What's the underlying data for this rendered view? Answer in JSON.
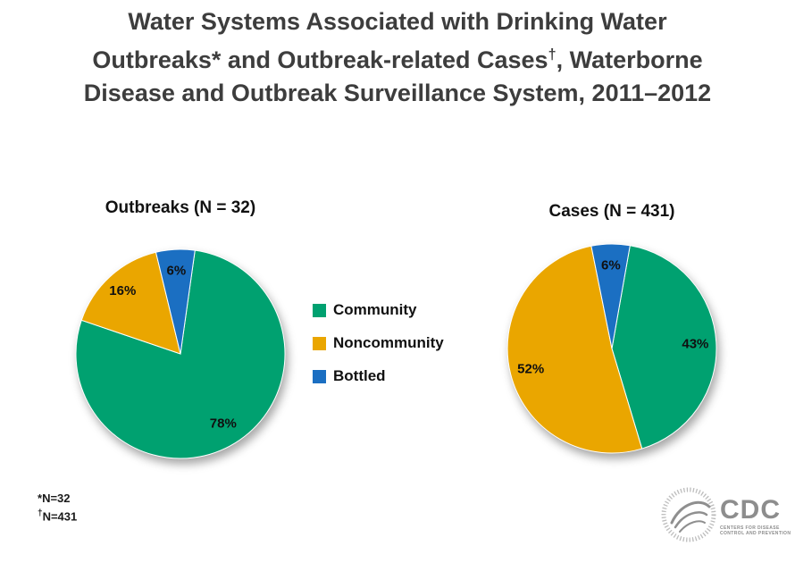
{
  "title": {
    "line1": "Water Systems Associated with Drinking Water",
    "line2_before_sup": "Outbreaks* and Outbreak-related Cases",
    "line2_sup": "†",
    "line2_after_sup": ", Waterborne",
    "line3": "Disease and Outbreak Surveillance System, 2011–2012"
  },
  "chart_data": {
    "type": "pie",
    "pies": [
      {
        "name": "outbreaks",
        "title": "Outbreaks (N = 32)",
        "n": 32,
        "start_angle": 8,
        "slices": [
          {
            "label": "Community",
            "pct": 78,
            "display": "78%",
            "color": "#00A170",
            "label_r": 0.78
          },
          {
            "label": "Noncommunity",
            "pct": 16,
            "display": "16%",
            "color": "#EAA600",
            "label_r": 0.82
          },
          {
            "label": "Bottled",
            "pct": 6,
            "display": "6%",
            "color": "#1B6FC2",
            "label_r": 0.8
          }
        ]
      },
      {
        "name": "cases",
        "title": "Cases (N = 431)",
        "n": 431,
        "start_angle": 10,
        "slices": [
          {
            "label": "Community",
            "pct": 43,
            "display": "43%",
            "color": "#00A170",
            "label_r": 0.8
          },
          {
            "label": "Noncommunity",
            "pct": 52,
            "display": "52%",
            "color": "#EAA600",
            "label_r": 0.8
          },
          {
            "label": "Bottled",
            "pct": 6,
            "display": "6%",
            "color": "#1B6FC2",
            "label_r": 0.8
          }
        ]
      }
    ],
    "legend": {
      "position": "center-between-pies",
      "items": [
        {
          "label": "Community",
          "color": "#00A170"
        },
        {
          "label": "Noncommunity",
          "color": "#EAA600"
        },
        {
          "label": "Bottled",
          "color": "#1B6FC2"
        }
      ]
    }
  },
  "footnotes": [
    {
      "marker": "*",
      "text": "N=32"
    },
    {
      "marker": "†",
      "text": "N=431"
    }
  ],
  "logos": {
    "cdc_text": "CDC",
    "cdc_tagline_line1": "Centers for Disease",
    "cdc_tagline_line2": "Control and Prevention"
  }
}
